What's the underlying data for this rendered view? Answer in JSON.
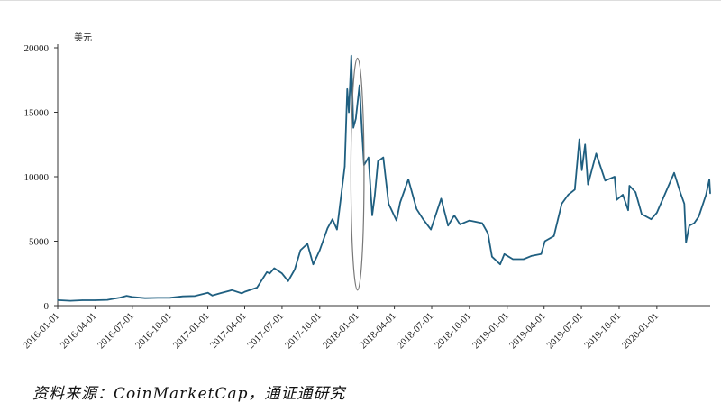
{
  "chart_data": {
    "type": "line",
    "title": "",
    "ylabel": "美元",
    "xlabel": "",
    "ylim": [
      0,
      20000
    ],
    "xlim": [
      "2016-01-01",
      "2020-05-10"
    ],
    "y_ticks": [
      0,
      5000,
      10000,
      15000,
      20000
    ],
    "x_ticks": [
      "2016-01-01",
      "2016-04-01",
      "2016-07-01",
      "2016-10-01",
      "2017-01-01",
      "2017-04-01",
      "2017-07-01",
      "2017-10-01",
      "2018-01-01",
      "2018-04-01",
      "2018-07-01",
      "2018-10-01",
      "2019-01-01",
      "2019-04-01",
      "2019-07-01",
      "2019-10-01",
      "2020-01-01"
    ],
    "grid": false,
    "series": [
      {
        "color": "#1f5f80",
        "points": [
          [
            "2016-01-01",
            430
          ],
          [
            "2016-02-01",
            380
          ],
          [
            "2016-03-01",
            420
          ],
          [
            "2016-04-01",
            420
          ],
          [
            "2016-05-01",
            450
          ],
          [
            "2016-06-01",
            620
          ],
          [
            "2016-06-17",
            760
          ],
          [
            "2016-07-01",
            670
          ],
          [
            "2016-08-01",
            580
          ],
          [
            "2016-09-01",
            600
          ],
          [
            "2016-10-01",
            610
          ],
          [
            "2016-11-01",
            720
          ],
          [
            "2016-12-01",
            750
          ],
          [
            "2017-01-01",
            1000
          ],
          [
            "2017-01-12",
            780
          ],
          [
            "2017-02-01",
            970
          ],
          [
            "2017-03-01",
            1200
          ],
          [
            "2017-03-25",
            950
          ],
          [
            "2017-04-01",
            1080
          ],
          [
            "2017-05-01",
            1400
          ],
          [
            "2017-05-25",
            2600
          ],
          [
            "2017-06-01",
            2500
          ],
          [
            "2017-06-12",
            2900
          ],
          [
            "2017-07-01",
            2500
          ],
          [
            "2017-07-16",
            1900
          ],
          [
            "2017-08-01",
            2800
          ],
          [
            "2017-08-15",
            4300
          ],
          [
            "2017-09-01",
            4800
          ],
          [
            "2017-09-15",
            3200
          ],
          [
            "2017-10-01",
            4300
          ],
          [
            "2017-10-20",
            6000
          ],
          [
            "2017-11-01",
            6700
          ],
          [
            "2017-11-12",
            5900
          ],
          [
            "2017-12-01",
            10800
          ],
          [
            "2017-12-07",
            16800
          ],
          [
            "2017-12-11",
            15000
          ],
          [
            "2017-12-17",
            19400
          ],
          [
            "2017-12-22",
            13800
          ],
          [
            "2017-12-28",
            14500
          ],
          [
            "2018-01-06",
            17100
          ],
          [
            "2018-01-12",
            13500
          ],
          [
            "2018-01-17",
            10900
          ],
          [
            "2018-01-28",
            11500
          ],
          [
            "2018-02-06",
            7000
          ],
          [
            "2018-02-12",
            8500
          ],
          [
            "2018-02-20",
            11200
          ],
          [
            "2018-03-05",
            11500
          ],
          [
            "2018-03-18",
            7900
          ],
          [
            "2018-04-06",
            6600
          ],
          [
            "2018-04-15",
            8000
          ],
          [
            "2018-05-05",
            9800
          ],
          [
            "2018-05-25",
            7500
          ],
          [
            "2018-06-10",
            6700
          ],
          [
            "2018-06-29",
            5900
          ],
          [
            "2018-07-24",
            8300
          ],
          [
            "2018-08-10",
            6200
          ],
          [
            "2018-08-25",
            7000
          ],
          [
            "2018-09-08",
            6300
          ],
          [
            "2018-10-01",
            6600
          ],
          [
            "2018-11-01",
            6400
          ],
          [
            "2018-11-15",
            5600
          ],
          [
            "2018-11-25",
            3800
          ],
          [
            "2018-12-15",
            3200
          ],
          [
            "2018-12-25",
            4000
          ],
          [
            "2019-01-15",
            3600
          ],
          [
            "2019-02-10",
            3600
          ],
          [
            "2019-03-01",
            3850
          ],
          [
            "2019-03-25",
            4000
          ],
          [
            "2019-04-03",
            5000
          ],
          [
            "2019-04-25",
            5400
          ],
          [
            "2019-05-14",
            7900
          ],
          [
            "2019-05-30",
            8600
          ],
          [
            "2019-06-15",
            9000
          ],
          [
            "2019-06-26",
            12900
          ],
          [
            "2019-07-02",
            10500
          ],
          [
            "2019-07-10",
            12500
          ],
          [
            "2019-07-17",
            9400
          ],
          [
            "2019-08-06",
            11800
          ],
          [
            "2019-08-28",
            9700
          ],
          [
            "2019-09-20",
            10000
          ],
          [
            "2019-09-25",
            8200
          ],
          [
            "2019-10-10",
            8600
          ],
          [
            "2019-10-23",
            7400
          ],
          [
            "2019-10-26",
            9300
          ],
          [
            "2019-11-10",
            8800
          ],
          [
            "2019-11-25",
            7100
          ],
          [
            "2019-12-18",
            6700
          ],
          [
            "2020-01-01",
            7200
          ],
          [
            "2020-01-20",
            8600
          ],
          [
            "2020-02-12",
            10300
          ],
          [
            "2020-02-28",
            8700
          ],
          [
            "2020-03-08",
            7900
          ],
          [
            "2020-03-12",
            4900
          ],
          [
            "2020-03-20",
            6200
          ],
          [
            "2020-04-01",
            6400
          ],
          [
            "2020-04-12",
            6900
          ],
          [
            "2020-04-30",
            8600
          ],
          [
            "2020-05-08",
            9800
          ],
          [
            "2020-05-10",
            8700
          ]
        ]
      }
    ],
    "annotations": [
      {
        "type": "ellipse",
        "center_date": "2018-01-01",
        "y_center": 10200,
        "y_half_range": 9000,
        "x_half_days": 16,
        "color": "#777777"
      }
    ]
  },
  "source": "资料来源：CoinMarketCap，通证通研究"
}
